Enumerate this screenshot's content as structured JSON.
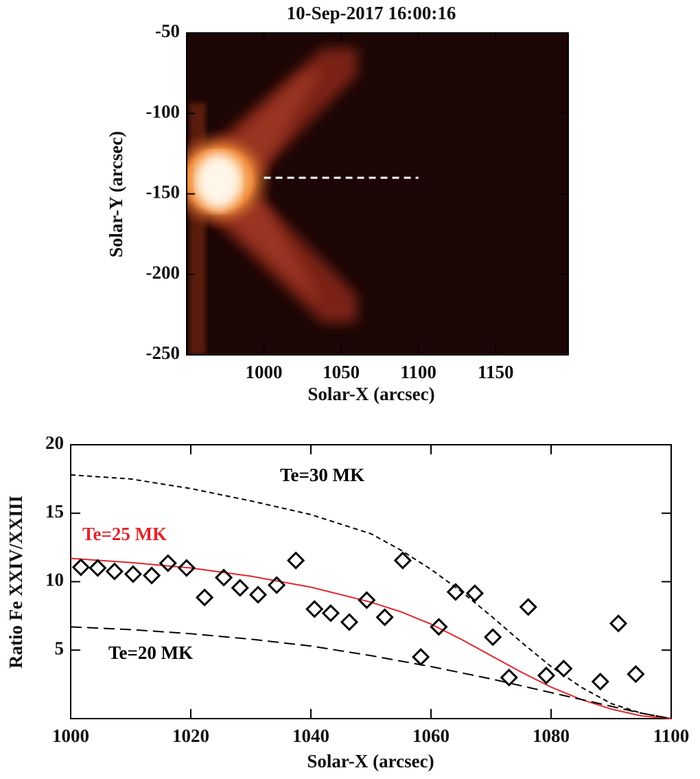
{
  "chart_data": [
    {
      "type": "image",
      "title": "10-Sep-2017 16:00:16",
      "x_label": "Solar-X (arcsec)",
      "y_label": "Solar-Y (arcsec)",
      "xlim": [
        950,
        1197
      ],
      "ylim": [
        -250,
        -50
      ],
      "xticks": [
        1000,
        1050,
        1100,
        1150
      ],
      "yticks": [
        -250,
        -200,
        -150,
        -100,
        -50
      ],
      "dashed_line": {
        "x": [
          1000,
          1100
        ],
        "y": [
          -140,
          -140
        ],
        "color": "#ffffff"
      }
    },
    {
      "type": "line",
      "x_label": "Solar-X (arcsec)",
      "y_label": "Ratio Fe XXIV/XXIII",
      "xlim": [
        1000,
        1100
      ],
      "ylim": [
        0,
        20
      ],
      "xticks": [
        1000,
        1020,
        1040,
        1060,
        1080,
        1100
      ],
      "yticks": [
        5,
        10,
        15,
        20
      ],
      "x": [
        1000,
        1010,
        1020,
        1030,
        1040,
        1050,
        1055,
        1060,
        1065,
        1070,
        1075,
        1080,
        1085,
        1090,
        1095,
        1100
      ],
      "series": [
        {
          "name": "Te=30 MK",
          "color": "#000000",
          "dash": "short",
          "values": [
            17.8,
            17.5,
            16.8,
            15.9,
            14.9,
            13.5,
            12.3,
            10.9,
            9.3,
            7.5,
            5.6,
            3.8,
            2.3,
            1.1,
            0.4,
            0
          ]
        },
        {
          "name": "Te=25 MK",
          "color": "#e0262b",
          "dash": "solid",
          "values": [
            11.7,
            11.4,
            11.0,
            10.4,
            9.6,
            8.5,
            7.8,
            6.9,
            5.8,
            4.6,
            3.4,
            2.3,
            1.4,
            0.7,
            0.2,
            0
          ]
        },
        {
          "name": "Te=20 MK",
          "color": "#000000",
          "dash": "long",
          "values": [
            6.7,
            6.5,
            6.2,
            5.8,
            5.3,
            4.6,
            4.2,
            3.8,
            3.35,
            2.9,
            2.4,
            1.9,
            1.4,
            0.9,
            0.4,
            0
          ]
        }
      ],
      "points": {
        "color": "#000000",
        "x": [
          1001.7,
          1004.5,
          1007.3,
          1010.4,
          1013.5,
          1016.2,
          1019.3,
          1022.3,
          1025.5,
          1028.2,
          1031.2,
          1034.3,
          1037.5,
          1040.6,
          1043.3,
          1046.4,
          1049.3,
          1052.3,
          1055.3,
          1058.3,
          1061.3,
          1064.1,
          1067.3,
          1070.3,
          1073.0,
          1076.2,
          1079.2,
          1082.1,
          1088.2,
          1091.2,
          1094.1
        ],
        "values": [
          11.05,
          11.0,
          10.75,
          10.55,
          10.45,
          11.35,
          11.0,
          8.85,
          10.3,
          9.55,
          9.05,
          9.75,
          11.55,
          8.0,
          7.7,
          7.05,
          8.65,
          7.4,
          11.55,
          4.5,
          6.7,
          9.25,
          9.15,
          5.95,
          3.0,
          8.15,
          3.15,
          3.65,
          2.7,
          6.95,
          3.25
        ]
      }
    }
  ]
}
